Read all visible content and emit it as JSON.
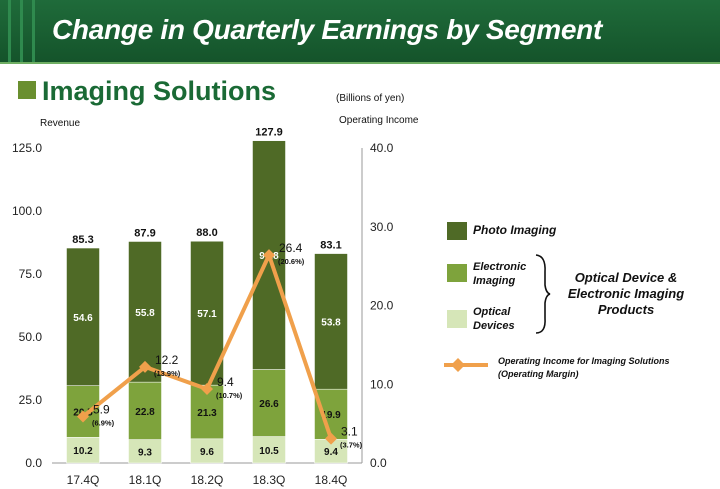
{
  "header": {
    "title": "Change in Quarterly Earnings by Segment"
  },
  "section": {
    "title": "Imaging Solutions",
    "units": "(Billions of yen)"
  },
  "legend": {
    "photo_imaging": "Photo Imaging",
    "electronic_imaging": [
      "Electronic",
      "Imaging"
    ],
    "optical_devices": [
      "Optical",
      "Devices"
    ],
    "group_label": [
      "Optical Device &",
      "Electronic Imaging",
      "Products"
    ],
    "line_label": [
      "Operating Income for Imaging Solutions",
      "(Operating Margin)"
    ]
  },
  "colors": {
    "header_bg": "#1a5e32",
    "photo_imaging": "#4f6a26",
    "electronic_imaging": "#7ea33c",
    "optical_devices": "#d6e6b8",
    "operating_income": "#f0a04b",
    "section_title": "#1a6a35"
  },
  "chart_data": {
    "type": "bar",
    "stacked": true,
    "categories": [
      "17.4Q",
      "18.1Q",
      "18.2Q",
      "18.3Q",
      "18.4Q"
    ],
    "ylabel": "Revenue",
    "y2label": "Operating Income",
    "ylim": [
      0,
      125
    ],
    "y2lim": [
      0,
      40
    ],
    "yticks": [
      "0.0",
      "25.0",
      "50.0",
      "75.0",
      "100.0",
      "125.0"
    ],
    "y2ticks": [
      "0.0",
      "10.0",
      "20.0",
      "30.0",
      "40.0"
    ],
    "series": [
      {
        "name": "Optical Devices",
        "values": [
          10.2,
          9.3,
          9.6,
          10.5,
          9.4
        ]
      },
      {
        "name": "Electronic Imaging",
        "values": [
          20.5,
          22.8,
          21.3,
          26.6,
          19.9
        ]
      },
      {
        "name": "Photo Imaging",
        "values": [
          54.6,
          55.8,
          57.1,
          90.8,
          53.8
        ]
      }
    ],
    "totals": [
      "85.3",
      "87.9",
      "88.0",
      "127.9",
      "83.1"
    ],
    "line": {
      "name": "Operating Income for Imaging Solutions",
      "axis": "right",
      "values": [
        5.9,
        12.2,
        9.4,
        26.4,
        3.1
      ],
      "margins": [
        "(6.9%)",
        "(13.9%)",
        "(10.7%)",
        "(20.6%)",
        "(3.7%)"
      ]
    }
  }
}
